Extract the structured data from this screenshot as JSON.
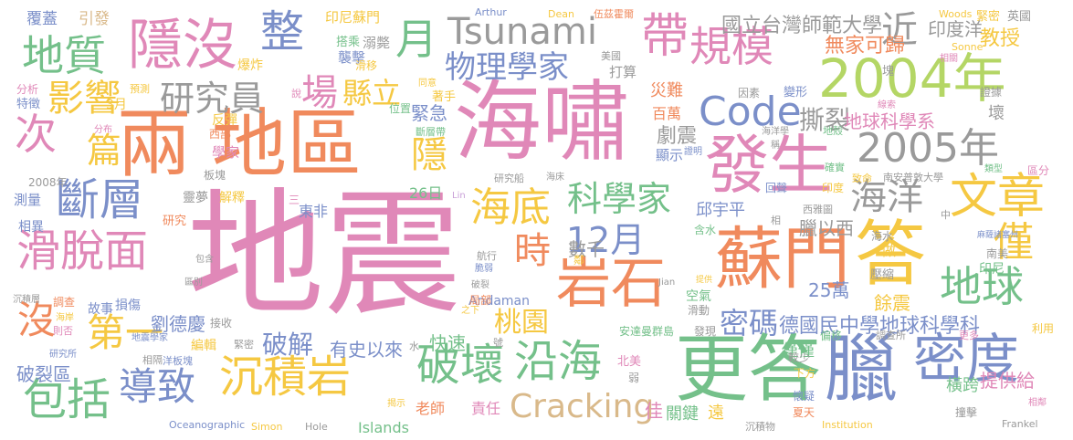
{
  "palette": {
    "pink": "#e088b8",
    "orange": "#f08a5d",
    "green": "#74c08a",
    "lime": "#b4d665",
    "gold": "#f5c842",
    "blue": "#7b8fc9",
    "gray": "#9a9a9a",
    "tan": "#d9b98a",
    "purple": "#c9a0d8"
  },
  "words": [
    {
      "text": "地震",
      "color": "#e088b8"
    },
    {
      "text": "海嘯",
      "color": "#e088b8"
    },
    {
      "text": "兩",
      "color": "#f08a5d"
    },
    {
      "text": "地區",
      "color": "#f08a5d"
    },
    {
      "text": "蘇門",
      "color": "#f08a5d"
    },
    {
      "text": "發生",
      "color": "#e088b8"
    },
    {
      "text": "答",
      "color": "#f5c842"
    },
    {
      "text": "更答",
      "color": "#74c08a"
    },
    {
      "text": "臘",
      "color": "#7b8fc9"
    },
    {
      "text": "密度",
      "color": "#7b8fc9"
    },
    {
      "text": "2004年",
      "color": "#b4d665"
    },
    {
      "text": "2005年",
      "color": "#9a9a9a"
    },
    {
      "text": "隱沒",
      "color": "#e088b8"
    },
    {
      "text": "Tsunami",
      "color": "#9a9a9a"
    },
    {
      "text": "帶",
      "color": "#e088b8"
    },
    {
      "text": "規模",
      "color": "#e088b8"
    },
    {
      "text": "整",
      "color": "#7b8fc9"
    },
    {
      "text": "月",
      "color": "#74c08a"
    },
    {
      "text": "地質",
      "color": "#74c08a"
    },
    {
      "text": "物理學家",
      "color": "#7b8fc9"
    },
    {
      "text": "近",
      "color": "#9a9a9a"
    },
    {
      "text": "次",
      "color": "#e088b8"
    },
    {
      "text": "影響",
      "color": "#f5c842"
    },
    {
      "text": "研究員",
      "color": "#9a9a9a"
    },
    {
      "text": "場",
      "color": "#e088b8"
    },
    {
      "text": "縣立",
      "color": "#f5c842"
    },
    {
      "text": "Code",
      "color": "#7b8fc9"
    },
    {
      "text": "篇",
      "color": "#f5c842"
    },
    {
      "text": "斷層",
      "color": "#7b8fc9"
    },
    {
      "text": "滑脫面",
      "color": "#e088b8"
    },
    {
      "text": "沉積岩",
      "color": "#f5c842"
    },
    {
      "text": "包括",
      "color": "#74c08a"
    },
    {
      "text": "導致",
      "color": "#7b8fc9"
    },
    {
      "text": "破壞",
      "color": "#74c08a"
    },
    {
      "text": "沿海",
      "color": "#74c08a"
    },
    {
      "text": "岩石",
      "color": "#f08a5d"
    },
    {
      "text": "12月",
      "color": "#7b8fc9"
    },
    {
      "text": "時",
      "color": "#f08a5d"
    },
    {
      "text": "海底",
      "color": "#f5c842"
    },
    {
      "text": "科學家",
      "color": "#74c08a"
    },
    {
      "text": "文章",
      "color": "#f5c842"
    },
    {
      "text": "海洋",
      "color": "#9a9a9a"
    },
    {
      "text": "僅",
      "color": "#f5c842"
    },
    {
      "text": "地球",
      "color": "#74c08a"
    },
    {
      "text": "第一",
      "color": "#f5c842"
    },
    {
      "text": "Cracking",
      "color": "#d9b98a"
    },
    {
      "text": "密碼",
      "color": "#7b8fc9"
    },
    {
      "text": "桃園",
      "color": "#f5c842"
    },
    {
      "text": "破解",
      "color": "#7b8fc9"
    },
    {
      "text": "撕裂",
      "color": "#9a9a9a"
    },
    {
      "text": "劇震",
      "color": "#9a9a9a"
    },
    {
      "text": "隱",
      "color": "#f5c842"
    },
    {
      "text": "緊急",
      "color": "#7b8fc9"
    },
    {
      "text": "國立台灣師範大學",
      "color": "#9a9a9a"
    },
    {
      "text": "印度洋",
      "color": "#9a9a9a"
    },
    {
      "text": "教授",
      "color": "#f5c842"
    },
    {
      "text": "無家可歸",
      "color": "#f08a5d"
    },
    {
      "text": "地球科學系",
      "color": "#e088b8"
    },
    {
      "text": "德國民中學地球科學科",
      "color": "#7b8fc9"
    },
    {
      "text": "劉德慶",
      "color": "#7b8fc9"
    },
    {
      "text": "沒",
      "color": "#f08a5d"
    },
    {
      "text": "有史以來",
      "color": "#7b8fc9"
    },
    {
      "text": "快速",
      "color": "#74c08a"
    },
    {
      "text": "臘以西",
      "color": "#9a9a9a"
    },
    {
      "text": "數千",
      "color": "#9a9a9a"
    },
    {
      "text": "邱宇平",
      "color": "#7b8fc9"
    },
    {
      "text": "25萬",
      "color": "#7b8fc9"
    },
    {
      "text": "僅僅",
      "color": "#74c08a"
    },
    {
      "text": "餘震",
      "color": "#f5c842"
    },
    {
      "text": "破裂區",
      "color": "#7b8fc9"
    },
    {
      "text": "提供給",
      "color": "#e088b8"
    },
    {
      "text": "橫跨",
      "color": "#74c08a"
    },
    {
      "text": "關鍵",
      "color": "#74c08a"
    },
    {
      "text": "遠",
      "color": "#f5c842"
    },
    {
      "text": "佳",
      "color": "#e088b8"
    },
    {
      "text": "老師",
      "color": "#f08a5d"
    },
    {
      "text": "責任",
      "color": "#e088b8"
    },
    {
      "text": "Islands",
      "color": "#74c08a"
    },
    {
      "text": "Hole",
      "color": "#9a9a9a"
    },
    {
      "text": "Simon",
      "color": "#f5c842"
    },
    {
      "text": "Oceanographic",
      "color": "#7b8fc9"
    },
    {
      "text": "Institution",
      "color": "#f5c842"
    },
    {
      "text": "Frankel",
      "color": "#9a9a9a"
    },
    {
      "text": "Andaman",
      "color": "#7b8fc9"
    },
    {
      "text": "Arthur",
      "color": "#7b8fc9"
    },
    {
      "text": "Dean",
      "color": "#f5c842"
    },
    {
      "text": "伍茲霍爾",
      "color": "#f08a5d"
    },
    {
      "text": "Woods",
      "color": "#f5c842"
    },
    {
      "text": "Sonne",
      "color": "#f5c842"
    },
    {
      "text": "Lin",
      "color": "#c9a0d8"
    },
    {
      "text": "Jian",
      "color": "#9a9a9a"
    },
    {
      "text": "覆蓋",
      "color": "#7b8fc9"
    },
    {
      "text": "引發",
      "color": "#d9b98a"
    },
    {
      "text": "印尼蘇門",
      "color": "#f5c842"
    },
    {
      "text": "搭乘",
      "color": "#74c08a"
    },
    {
      "text": "溺斃",
      "color": "#9a9a9a"
    },
    {
      "text": "襲擊",
      "color": "#7b8fc9"
    },
    {
      "text": "爆炸",
      "color": "#f5c842"
    },
    {
      "text": "滑移",
      "color": "#f5c842"
    },
    {
      "text": "美國",
      "color": "#9a9a9a"
    },
    {
      "text": "打算",
      "color": "#9a9a9a"
    },
    {
      "text": "災難",
      "color": "#f08a5d"
    },
    {
      "text": "百萬",
      "color": "#f08a5d"
    },
    {
      "text": "緊密",
      "color": "#f5c842"
    },
    {
      "text": "英國",
      "color": "#9a9a9a"
    },
    {
      "text": "相關",
      "color": "#e088b8"
    },
    {
      "text": "3月",
      "color": "#f5c842"
    },
    {
      "text": "分析",
      "color": "#e088b8"
    },
    {
      "text": "特徵",
      "color": "#7b8fc9"
    },
    {
      "text": "預測",
      "color": "#f5c842"
    },
    {
      "text": "分布",
      "color": "#e088b8"
    },
    {
      "text": "說",
      "color": "#e088b8"
    },
    {
      "text": "反彈",
      "color": "#f5c842"
    },
    {
      "text": "西部",
      "color": "#f08a5d"
    },
    {
      "text": "學家",
      "color": "#e088b8"
    },
    {
      "text": "板塊",
      "color": "#9a9a9a"
    },
    {
      "text": "2008年",
      "color": "#9a9a9a"
    },
    {
      "text": "測量",
      "color": "#7b8fc9"
    },
    {
      "text": "相異",
      "color": "#7b8fc9"
    },
    {
      "text": "靈夢",
      "color": "#9a9a9a"
    },
    {
      "text": "解釋",
      "color": "#f5c842"
    },
    {
      "text": "研究",
      "color": "#f08a5d"
    },
    {
      "text": "三",
      "color": "#e088b8"
    },
    {
      "text": "東非",
      "color": "#7b8fc9"
    },
    {
      "text": "26日",
      "color": "#74c08a"
    },
    {
      "text": "同意",
      "color": "#f5c842"
    },
    {
      "text": "位置",
      "color": "#74c08a"
    },
    {
      "text": "著手",
      "color": "#f5c842"
    },
    {
      "text": "斷層帶",
      "color": "#74c08a"
    },
    {
      "text": "研究船",
      "color": "#9a9a9a"
    },
    {
      "text": "海床",
      "color": "#9a9a9a"
    },
    {
      "text": "因素",
      "color": "#9a9a9a"
    },
    {
      "text": "變形",
      "color": "#7b8fc9"
    },
    {
      "text": "塊",
      "color": "#9a9a9a"
    },
    {
      "text": "證據",
      "color": "#9a9a9a"
    },
    {
      "text": "線索",
      "color": "#e088b8"
    },
    {
      "text": "壞",
      "color": "#9a9a9a"
    },
    {
      "text": "海洋學",
      "color": "#9a9a9a"
    },
    {
      "text": "地殼",
      "color": "#74c08a"
    },
    {
      "text": "證明",
      "color": "#7b8fc9"
    },
    {
      "text": "顯示",
      "color": "#7b8fc9"
    },
    {
      "text": "稱",
      "color": "#9a9a9a"
    },
    {
      "text": "確實",
      "color": "#74c08a"
    },
    {
      "text": "致命",
      "color": "#f5c842"
    },
    {
      "text": "南安普敦大學",
      "color": "#9a9a9a"
    },
    {
      "text": "類型",
      "color": "#74c08a"
    },
    {
      "text": "區分",
      "color": "#e088b8"
    },
    {
      "text": "回聲",
      "color": "#7b8fc9"
    },
    {
      "text": "印度",
      "color": "#f5c842"
    },
    {
      "text": "西雅圖",
      "color": "#9a9a9a"
    },
    {
      "text": "相",
      "color": "#9a9a9a"
    },
    {
      "text": "含水",
      "color": "#74c08a"
    },
    {
      "text": "中",
      "color": "#9a9a9a"
    },
    {
      "text": "麻薩諸塞州",
      "color": "#7b8fc9"
    },
    {
      "text": "海水",
      "color": "#9a9a9a"
    },
    {
      "text": "做",
      "color": "#f5c842"
    },
    {
      "text": "南美",
      "color": "#9a9a9a"
    },
    {
      "text": "印尼",
      "color": "#74c08a"
    },
    {
      "text": "壓縮",
      "color": "#9a9a9a"
    },
    {
      "text": "航行",
      "color": "#9a9a9a"
    },
    {
      "text": "脆弱",
      "color": "#7b8fc9"
    },
    {
      "text": "破裂",
      "color": "#9a9a9a"
    },
    {
      "text": "鄰",
      "color": "#f5c842"
    },
    {
      "text": "局部",
      "color": "#f08a5d"
    },
    {
      "text": "提供",
      "color": "#f5c842"
    },
    {
      "text": "空氣",
      "color": "#74c08a"
    },
    {
      "text": "滑動",
      "color": "#9a9a9a"
    },
    {
      "text": "故事",
      "color": "#7b8fc9"
    },
    {
      "text": "損傷",
      "color": "#7b8fc9"
    },
    {
      "text": "調查",
      "color": "#f08a5d"
    },
    {
      "text": "則否",
      "color": "#e088b8"
    },
    {
      "text": "海岸",
      "color": "#f5c842"
    },
    {
      "text": "相隔",
      "color": "#9a9a9a"
    },
    {
      "text": "洋板塊",
      "color": "#7b8fc9"
    },
    {
      "text": "之下",
      "color": "#f5c842"
    },
    {
      "text": "號",
      "color": "#9a9a9a"
    },
    {
      "text": "安達曼群島",
      "color": "#74c08a"
    },
    {
      "text": "發現",
      "color": "#9a9a9a"
    },
    {
      "text": "包含",
      "color": "#9a9a9a"
    },
    {
      "text": "區別",
      "color": "#9a9a9a"
    },
    {
      "text": "接收",
      "color": "#9a9a9a"
    },
    {
      "text": "地震學家",
      "color": "#7b8fc9"
    },
    {
      "text": "研究所",
      "color": "#7b8fc9"
    },
    {
      "text": "沉積層",
      "color": "#9a9a9a"
    },
    {
      "text": "編輯",
      "color": "#f5c842"
    },
    {
      "text": "緊密",
      "color": "#9a9a9a"
    },
    {
      "text": "水",
      "color": "#9a9a9a"
    },
    {
      "text": "北美",
      "color": "#e088b8"
    },
    {
      "text": "弱",
      "color": "#9a9a9a"
    },
    {
      "text": "較少",
      "color": "#9a9a9a"
    },
    {
      "text": "下方",
      "color": "#f5c842"
    },
    {
      "text": "懷疑",
      "color": "#7b8fc9"
    },
    {
      "text": "偏移",
      "color": "#74c08a"
    },
    {
      "text": "調查所",
      "color": "#9a9a9a"
    },
    {
      "text": "更多",
      "color": "#e088b8"
    },
    {
      "text": "利用",
      "color": "#f5c842"
    },
    {
      "text": "相鄰",
      "color": "#e088b8"
    },
    {
      "text": "撞擊",
      "color": "#9a9a9a"
    },
    {
      "text": "夏天",
      "color": "#f08a5d"
    },
    {
      "text": "沉積物",
      "color": "#9a9a9a"
    },
    {
      "text": "揭示",
      "color": "#f5c842"
    }
  ]
}
